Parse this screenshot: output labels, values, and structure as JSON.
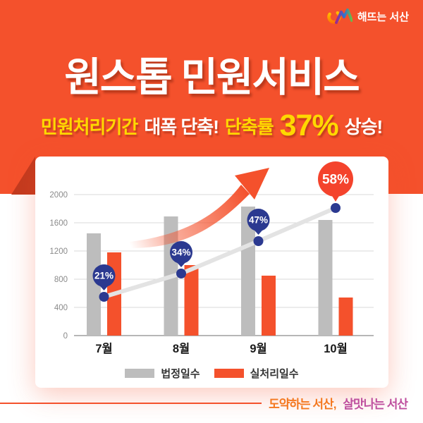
{
  "logo": {
    "text": "해뜨는 서산",
    "icon": "sunrise-mountain-icon"
  },
  "header": {
    "title": "원스톱 민원서비스",
    "subtitle": {
      "seg1": "민원처리기간",
      "seg2": "대폭 단축!",
      "seg3": "단축률",
      "seg4": "37%",
      "seg5": "상승!"
    },
    "bg_color": "#F4512C",
    "accent_yellow": "#FFD800"
  },
  "chart_data": {
    "type": "bar",
    "title": "",
    "xlabel": "",
    "ylabel": "",
    "categories": [
      "7월",
      "8월",
      "9월",
      "10월"
    ],
    "series": [
      {
        "name": "법정일수",
        "color": "#BDBDBD",
        "values": [
          1450,
          1690,
          1830,
          1640
        ]
      },
      {
        "name": "실처리일수",
        "color": "#F4512C",
        "values": [
          1180,
          1000,
          850,
          540
        ]
      }
    ],
    "overlay_line": {
      "name": "단축률",
      "labels": [
        "21%",
        "34%",
        "47%",
        "58%"
      ],
      "values": [
        550,
        880,
        1340,
        1810
      ],
      "label_colors": [
        "#2B3990",
        "#2B3990",
        "#2B3990",
        "#F4432C"
      ],
      "line_color": "#E3E3E3",
      "dot_color": "#2B3990"
    },
    "ylim": [
      0,
      2000
    ],
    "yticks": [
      0,
      400,
      800,
      1200,
      1600,
      2000
    ],
    "grid": true,
    "legend_position": "bottom",
    "annotations": [
      "upward-swoosh-arrow"
    ]
  },
  "footer": {
    "slogan1": "도약하는 서산,",
    "slogan2": "살맛나는 서산",
    "line_color": "#F4512C"
  }
}
